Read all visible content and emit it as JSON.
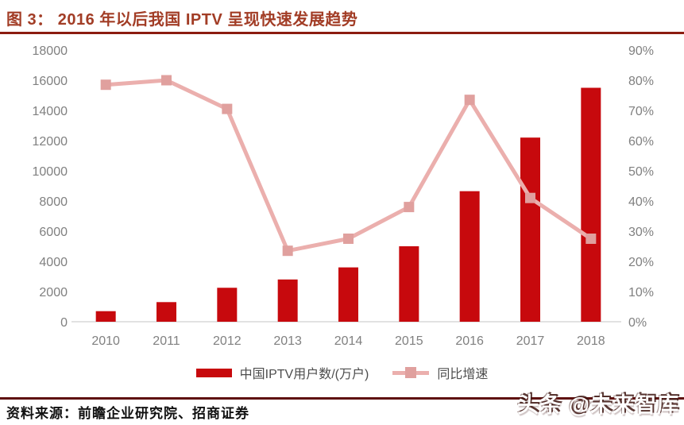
{
  "header": {
    "title": "图 3： 2016 年以后我国 IPTV 呈现快速发展趋势"
  },
  "chart_data": {
    "type": "bar",
    "subtype": "combo-bar-line-dual-axis",
    "categories": [
      "2010",
      "2011",
      "2012",
      "2013",
      "2014",
      "2015",
      "2016",
      "2017",
      "2018"
    ],
    "series": [
      {
        "name": "中国IPTV用户数/(万户)",
        "type": "bar",
        "axis": "left",
        "values": [
          700,
          1300,
          2250,
          2800,
          3600,
          5000,
          8650,
          12200,
          15500
        ]
      },
      {
        "name": "同比增速",
        "type": "line",
        "axis": "right",
        "values": [
          78.5,
          80,
          70.5,
          23.5,
          27.5,
          38,
          73.5,
          41,
          27.5
        ],
        "unit": "%"
      }
    ],
    "left_axis": {
      "min": 0,
      "max": 18000,
      "ticks": [
        "0",
        "2000",
        "4000",
        "6000",
        "8000",
        "10000",
        "12000",
        "14000",
        "16000",
        "18000"
      ]
    },
    "right_axis": {
      "min": 0,
      "max": 90,
      "ticks": [
        "0%",
        "10%",
        "20%",
        "30%",
        "40%",
        "50%",
        "60%",
        "70%",
        "80%",
        "90%"
      ]
    },
    "grid": "off",
    "legend_position": "bottom",
    "colors": {
      "bar": "#C7090D",
      "line": "#EBAFAD",
      "marker": "#E0A09E",
      "axis_line": "#D9D9D9",
      "tick_label": "#808080",
      "title": "#A23D26",
      "rule_top": "#8C1C10",
      "rule_bottom": "#5E100E"
    }
  },
  "legend": {
    "bar_label": "中国IPTV用户数/(万户)",
    "line_label": "同比增速"
  },
  "footer": {
    "source": "资料来源：前瞻企业研究院、招商证券",
    "watermark": "头条 @未来智库"
  }
}
